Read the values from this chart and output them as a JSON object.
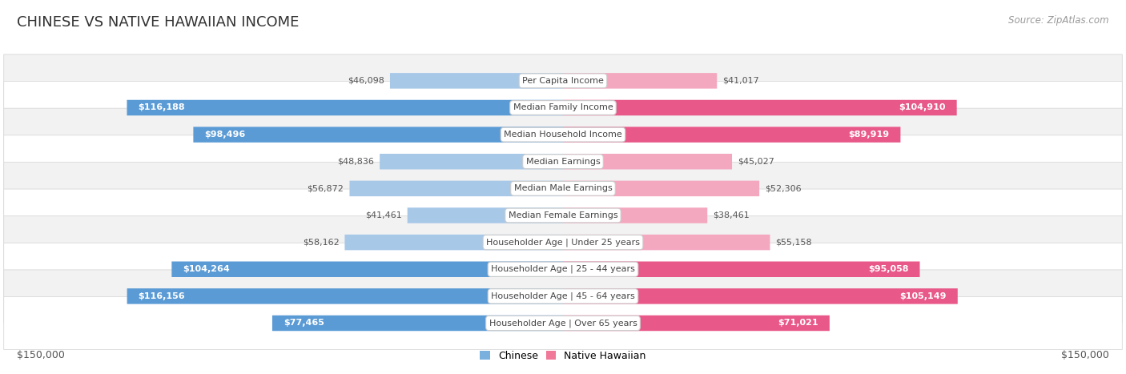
{
  "title": "CHINESE VS NATIVE HAWAIIAN INCOME",
  "source": "Source: ZipAtlas.com",
  "categories": [
    "Per Capita Income",
    "Median Family Income",
    "Median Household Income",
    "Median Earnings",
    "Median Male Earnings",
    "Median Female Earnings",
    "Householder Age | Under 25 years",
    "Householder Age | 25 - 44 years",
    "Householder Age | 45 - 64 years",
    "Householder Age | Over 65 years"
  ],
  "chinese_values": [
    46098,
    116188,
    98496,
    48836,
    56872,
    41461,
    58162,
    104264,
    116156,
    77465
  ],
  "hawaiian_values": [
    41017,
    104910,
    89919,
    45027,
    52306,
    38461,
    55158,
    95058,
    105149,
    71021
  ],
  "chinese_labels": [
    "$46,098",
    "$116,188",
    "$98,496",
    "$48,836",
    "$56,872",
    "$41,461",
    "$58,162",
    "$104,264",
    "$116,156",
    "$77,465"
  ],
  "hawaiian_labels": [
    "$41,017",
    "$104,910",
    "$89,919",
    "$45,027",
    "$52,306",
    "$38,461",
    "$55,158",
    "$95,058",
    "$105,149",
    "$71,021"
  ],
  "max_value": 150000,
  "chinese_color_light": "#a8c8e8",
  "chinese_color_dark": "#5b9bd5",
  "hawaiian_color_light": "#f4a8c0",
  "hawaiian_color_dark": "#e85888",
  "row_bg_odd": "#f2f2f2",
  "row_bg_even": "#ffffff",
  "row_border": "#d8d8d8",
  "legend_chinese_color": "#7ab0de",
  "legend_hawaiian_color": "#f07898",
  "xlabel_left": "$150,000",
  "xlabel_right": "$150,000",
  "legend_label_chinese": "Chinese",
  "legend_label_hawaiian": "Native Hawaiian",
  "title_fontsize": 13,
  "source_fontsize": 8.5,
  "label_fontsize": 8,
  "category_fontsize": 8,
  "axis_label_fontsize": 9,
  "large_threshold": 70000
}
